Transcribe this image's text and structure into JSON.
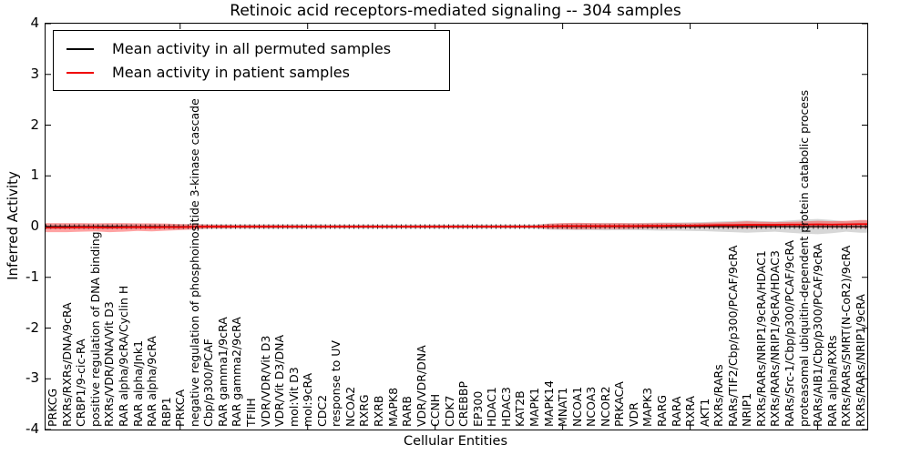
{
  "title": "Retinoic acid receptors-mediated signaling -- 304 samples",
  "axes": {
    "ylabel": "Inferred Activity",
    "xlabel": "Cellular Entities",
    "yticks": [
      4,
      3,
      2,
      1,
      0,
      -1,
      -2,
      -3,
      -4
    ],
    "ylim": [
      -4,
      4
    ],
    "xtick_indices": [
      9,
      18,
      27,
      36,
      45,
      54
    ]
  },
  "legend": {
    "items": [
      {
        "label": "Mean activity in all permuted samples",
        "color": "#000000"
      },
      {
        "label": "Mean activity in patient samples",
        "color": "#f00000"
      }
    ]
  },
  "chart_data": {
    "type": "line",
    "title": "Retinoic acid receptors-mediated signaling -- 304 samples",
    "xlabel": "Cellular Entities",
    "ylabel": "Inferred Activity",
    "ylim": [
      -4,
      4
    ],
    "grid": false,
    "legend_position": "upper left",
    "categories": [
      "PRKCG",
      "RXRs/RXRs/DNA/9cRA",
      "CRBP1/9-cic-RA",
      "positive regulation of DNA binding",
      "RXRs/VDR/DNA/Vit D3",
      "RAR alpha/9cRA/Cyclin H",
      "RAR alpha/Jnk1",
      "RAR alpha/9cRA",
      "RBP1",
      "PRKCA",
      "negative regulation of phosphoinositide 3-kinase cascade",
      "Cbp/p300/PCAF",
      "RAR gamma1/9cRA",
      "RAR gamma2/9cRA",
      "TFIIH",
      "VDR/VDR/Vit D3",
      "VDR/Vit D3/DNA",
      "mol:Vit D3",
      "mol:9cRA",
      "CDC2",
      "response to UV",
      "NCOA2",
      "RXRG",
      "RXRB",
      "MAPK8",
      "RARB",
      "VDR/VDR/DNA",
      "CCNH",
      "CDK7",
      "CREBBP",
      "EP300",
      "HDAC1",
      "HDAC3",
      "KAT2B",
      "MAPK1",
      "MAPK14",
      "MNAT1",
      "NCOA1",
      "NCOA3",
      "NCOR2",
      "PRKACA",
      "VDR",
      "MAPK3",
      "RARG",
      "RARA",
      "RXRA",
      "AKT1",
      "RXRs/RARs",
      "RARs/TIF2/Cbp/p300/PCAF/9cRA",
      "NRIP1",
      "RXRs/RARs/NRIP1/9cRA/HDAC1",
      "RXRs/RARs/NRIP1/9cRA/HDAC3",
      "RARs/Src-1/Cbp/p300/PCAF/9cRA",
      "proteasomal ubiquitin-dependent protein catabolic process",
      "RARs/AIB1/Cbp/p300/PCAF/9cRA",
      "RAR alpha/RXRs",
      "RXRs/RARs/SMRT(N-CoR2)/9cRA",
      "RXRs/RARs/NRIP1/9cRA"
    ],
    "series": [
      {
        "name": "Mean activity in all permuted samples",
        "color": "#000000",
        "band_color": "#b0b0b0",
        "band_opacity": 0.5,
        "marker": "|",
        "values": [
          0,
          0,
          0,
          0,
          0,
          0,
          0,
          0,
          0,
          0,
          0,
          0,
          0,
          0,
          0,
          0,
          0,
          0,
          0,
          0,
          0,
          0,
          0,
          0,
          0,
          0,
          0,
          0,
          0,
          0,
          0,
          0,
          0,
          0,
          0,
          0,
          0,
          0,
          0,
          0,
          0,
          0,
          0,
          0,
          0,
          0,
          0,
          0,
          0,
          0,
          0,
          0,
          0,
          0,
          0,
          0,
          0,
          0
        ],
        "band": [
          0.05,
          0.05,
          0.05,
          0.05,
          0.05,
          0.05,
          0.05,
          0.05,
          0.05,
          0.05,
          0.05,
          0.045,
          0.045,
          0.045,
          0.045,
          0.045,
          0.045,
          0.045,
          0.045,
          0.045,
          0.04,
          0.04,
          0.04,
          0.04,
          0.04,
          0.04,
          0.04,
          0.04,
          0.04,
          0.04,
          0.04,
          0.04,
          0.04,
          0.04,
          0.04,
          0.06,
          0.065,
          0.07,
          0.07,
          0.075,
          0.07,
          0.07,
          0.075,
          0.08,
          0.08,
          0.085,
          0.09,
          0.1,
          0.11,
          0.12,
          0.11,
          0.1,
          0.12,
          0.14,
          0.15,
          0.13,
          0.1,
          0.12
        ]
      },
      {
        "name": "Mean activity in patient samples",
        "color": "#f00000",
        "band_color": "#ff3333",
        "band_opacity": 0.45,
        "marker": "none",
        "values": [
          -0.02,
          -0.02,
          -0.015,
          -0.015,
          -0.02,
          -0.015,
          -0.01,
          -0.015,
          -0.01,
          -0.01,
          -0.005,
          0,
          0,
          0,
          0,
          0,
          0,
          0,
          0,
          0,
          0,
          0,
          0,
          0,
          0,
          0,
          0,
          0,
          0,
          0,
          0,
          0,
          0,
          0,
          0,
          0.005,
          0.01,
          0.01,
          0.01,
          0.01,
          0.01,
          0.01,
          0.015,
          0.015,
          0.02,
          0.02,
          0.025,
          0.03,
          0.03,
          0.035,
          0.035,
          0.035,
          0.04,
          0.04,
          0.045,
          0.04,
          0.045,
          0.05
        ],
        "band": [
          0.09,
          0.09,
          0.085,
          0.08,
          0.09,
          0.085,
          0.075,
          0.08,
          0.07,
          0.06,
          0.05,
          0.04,
          0.035,
          0.03,
          0.03,
          0.03,
          0.03,
          0.028,
          0.028,
          0.028,
          0.025,
          0.025,
          0.025,
          0.025,
          0.025,
          0.025,
          0.025,
          0.025,
          0.025,
          0.025,
          0.025,
          0.025,
          0.025,
          0.025,
          0.025,
          0.05,
          0.06,
          0.065,
          0.06,
          0.055,
          0.06,
          0.055,
          0.05,
          0.055,
          0.05,
          0.045,
          0.05,
          0.05,
          0.06,
          0.07,
          0.06,
          0.055,
          0.055,
          0.06,
          0.07,
          0.065,
          0.07,
          0.08
        ]
      }
    ]
  }
}
